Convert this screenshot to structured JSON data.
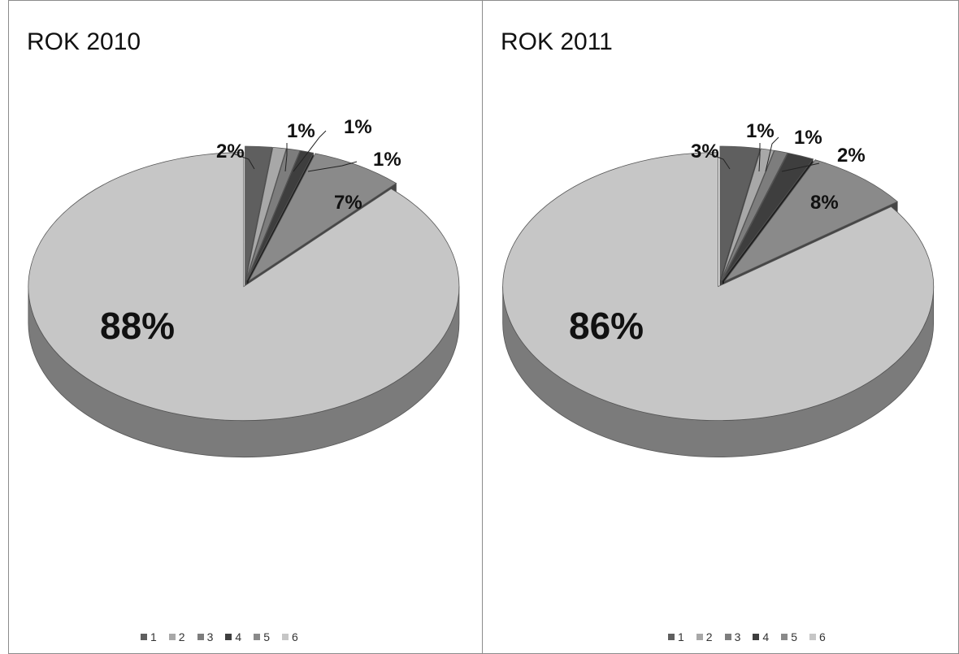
{
  "chart_data": [
    {
      "type": "pie",
      "title": "ROK 2010",
      "categories": [
        "1",
        "2",
        "3",
        "4",
        "5",
        "6"
      ],
      "values": [
        2,
        1,
        1,
        1,
        7,
        88
      ],
      "labels": [
        "2%",
        "1%",
        "1%",
        "1%",
        "7%",
        "88%"
      ],
      "legend": "bottom",
      "colors": [
        "#5f5f5f",
        "#a8a8a8",
        "#7d7d7d",
        "#3e3e3e",
        "#8a8a8a",
        "#c6c6c6"
      ]
    },
    {
      "type": "pie",
      "title": "ROK 2011",
      "categories": [
        "1",
        "2",
        "3",
        "4",
        "5",
        "6"
      ],
      "values": [
        3,
        1,
        1,
        2,
        8,
        86
      ],
      "labels": [
        "3%",
        "1%",
        "1%",
        "2%",
        "8%",
        "86%"
      ],
      "legend": "bottom",
      "colors": [
        "#5f5f5f",
        "#a8a8a8",
        "#7d7d7d",
        "#3e3e3e",
        "#8a8a8a",
        "#c6c6c6"
      ]
    }
  ]
}
